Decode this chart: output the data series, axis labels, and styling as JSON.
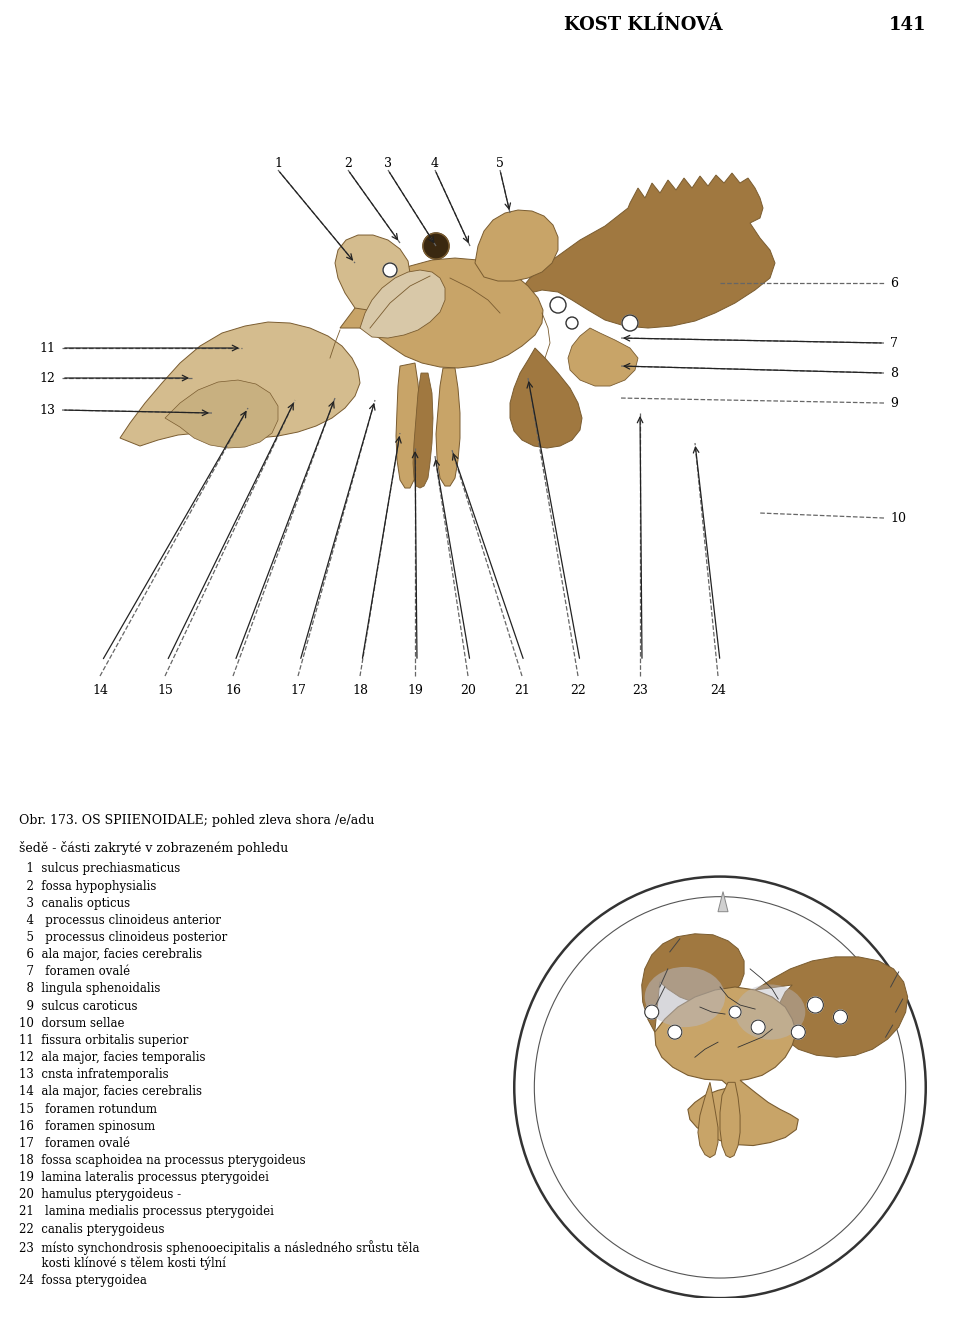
{
  "title": "KOST KLÍNOVÁ",
  "page_number": "141",
  "background_color": "#ffffff",
  "figure_caption": "Obr. 173. OS SPIIENOIDALE; pohled zleva shora /e/adu",
  "figure_caption2": "šedě - části zakryté v zobrazeném pohledu",
  "legend_items": [
    "  1  sulcus prechiasmaticus",
    "  2  fossa hypophysialis",
    "  3  canalis opticus",
    "  4   processus clinoideus anterior",
    "  5   processus clinoideus posterior",
    "  6  ala major, facies cerebralis",
    "  7   foramen ovalé",
    "  8  lingula sphenoidalis",
    "  9  sulcus caroticus",
    "10  dorsum sellae",
    "11  fissura orbitalis superior",
    "12  ala major, facies temporalis",
    "13  cnsta infratemporalis",
    "14  ala major, facies cerebralis",
    "15   foramen rotundum",
    "16   foramen spinosum",
    "17   foramen ovalé",
    "18  fossa scaphoidea na processus pterygoideus",
    "19  lamina lateralis processus pterygoidei",
    "20  hamulus pterygoideus -",
    "21   lamina medialis processus pterygoidei",
    "22  canalis pterygoideus",
    "23  místo synchondrosis sphenooecipitalis a následného srůstu těla",
    "      kosti klínové s tělem kosti týlní",
    "24  fossa pterygoidea"
  ],
  "bone_color_light": "#d4bc8e",
  "bone_color_mid": "#c8a468",
  "bone_color_dark": "#a07840",
  "bone_color_brown": "#8b6030",
  "line_color": "#444444",
  "dash_color": "#666666"
}
